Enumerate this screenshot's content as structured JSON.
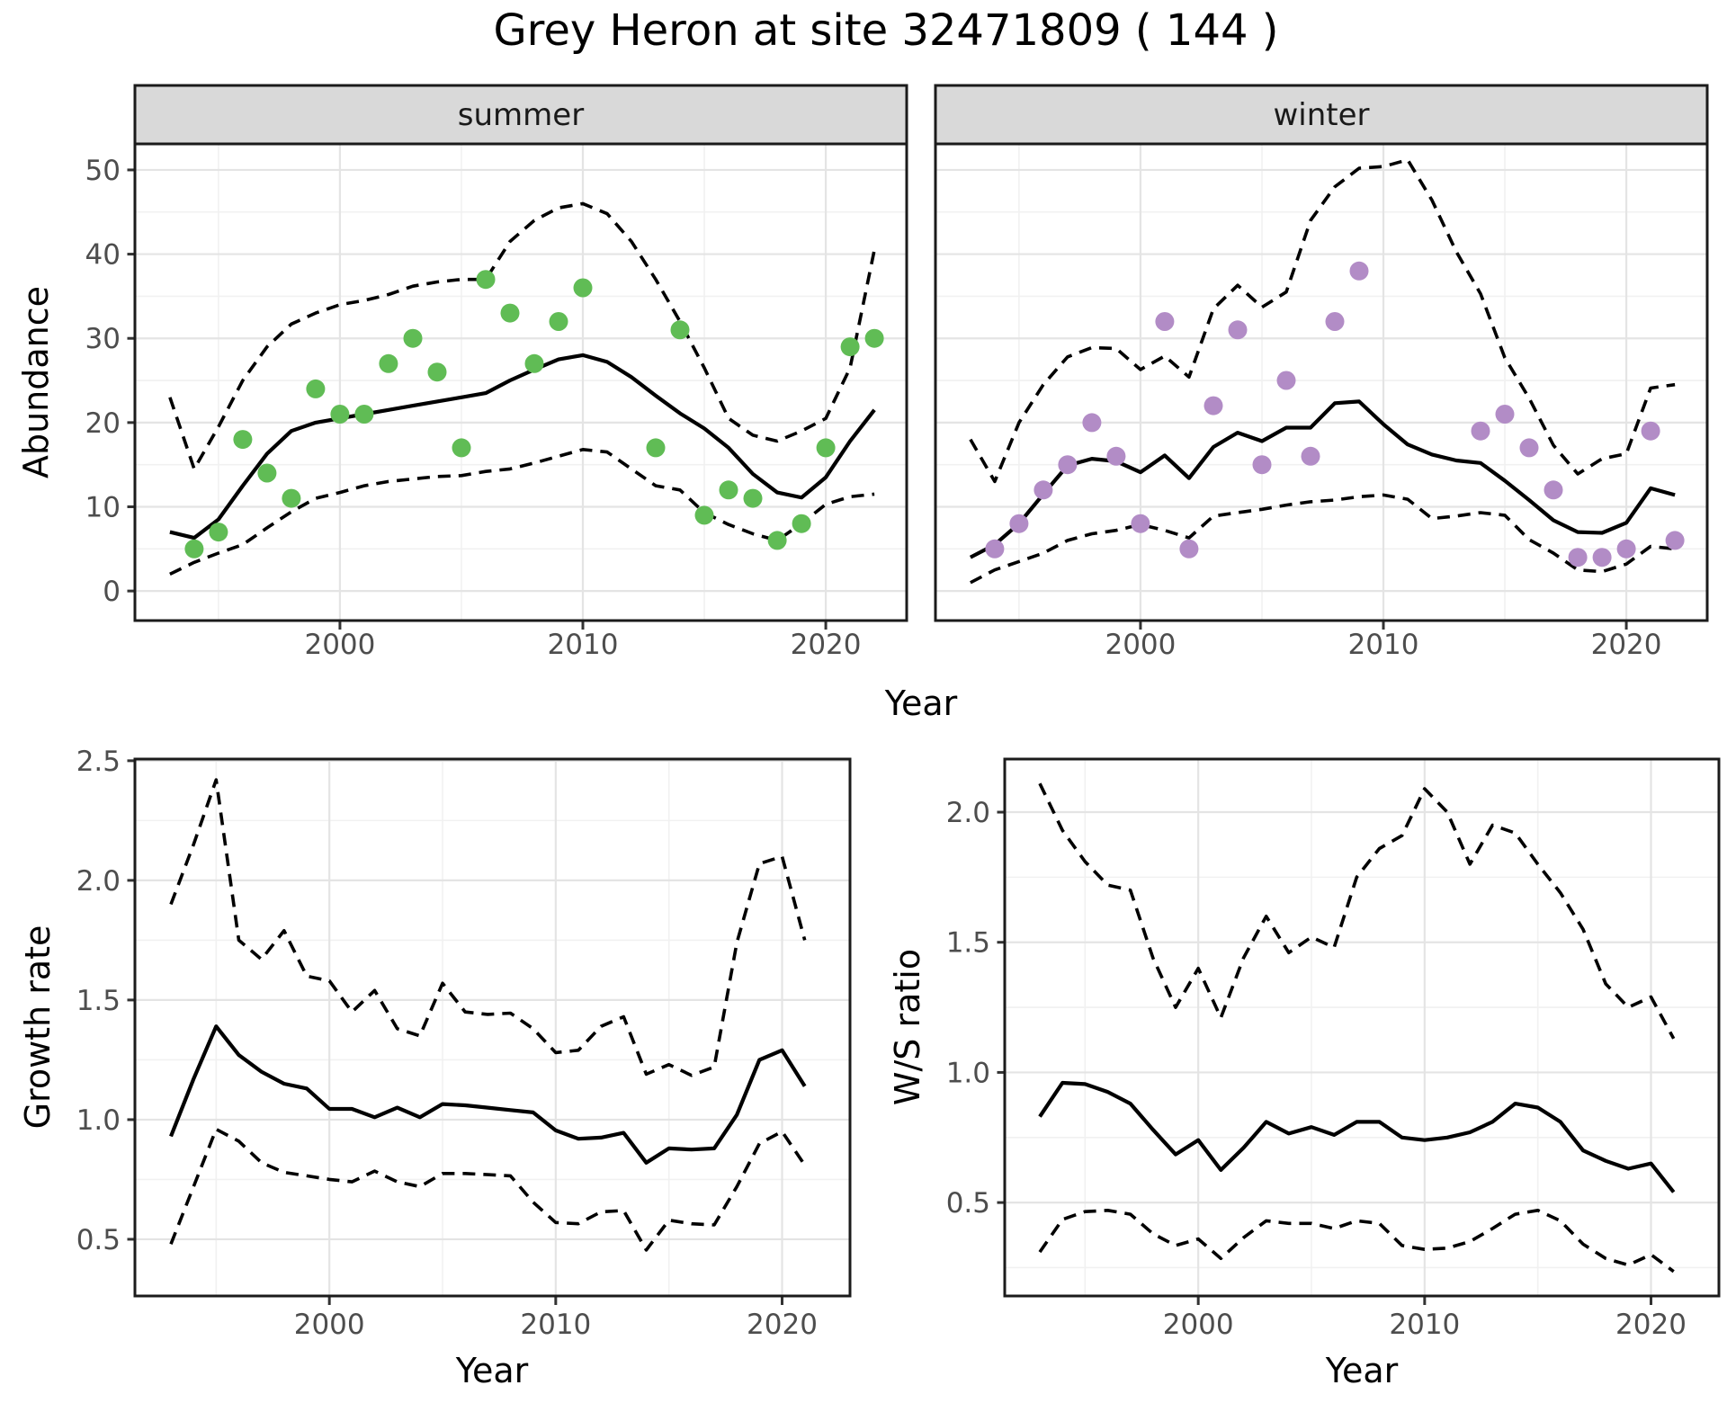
{
  "title": "Grey Heron at site 32471809 ( 144 )",
  "labels": {
    "y_abundance": "Abundance",
    "x_year_top": "Year",
    "y_growth": "Growth rate",
    "x_year_growth": "Year",
    "y_ws": "W/S ratio",
    "x_year_ws": "Year",
    "facet_summer": "summer",
    "facet_winter": "winter"
  },
  "colors": {
    "summer_points": "#60BC55",
    "winter_points": "#B28CC6",
    "line": "#000000",
    "strip_fill": "#D9D9D9",
    "grid_major": "#E4E4E4",
    "grid_minor": "#F1F1F1",
    "tick_text": "#4D4D4D",
    "panel_border": "#1B1B1B"
  },
  "chart_data": [
    {
      "type": "line",
      "facet": "summer",
      "xlabel": "Year",
      "ylabel": "Abundance",
      "xlim": [
        1991.56,
        2023.33
      ],
      "ylim": [
        -3.51,
        53.09
      ],
      "xticks": {
        "values": [
          2000,
          2010,
          2020
        ],
        "labels": [
          "2000",
          "2010",
          "2020"
        ],
        "minor": [
          1995,
          2005,
          2015
        ]
      },
      "yticks": {
        "values": [
          0,
          10,
          20,
          30,
          40,
          50
        ],
        "labels": [
          "0",
          "10",
          "20",
          "30",
          "40",
          "50"
        ],
        "minor": [
          5,
          15,
          25,
          35,
          45
        ]
      },
      "x_years": [
        1993,
        1994,
        1995,
        1996,
        1997,
        1998,
        1999,
        2000,
        2001,
        2002,
        2003,
        2004,
        2005,
        2006,
        2007,
        2008,
        2009,
        2010,
        2011,
        2012,
        2013,
        2014,
        2015,
        2016,
        2017,
        2018,
        2019,
        2020,
        2021,
        2022
      ],
      "series": [
        {
          "name": "estimate",
          "style": "solid",
          "values": [
            7,
            6.3,
            8.5,
            12.5,
            16.3,
            19,
            20,
            20.5,
            21,
            21.5,
            22,
            22.5,
            23,
            23.5,
            25,
            26.3,
            27.5,
            28,
            27.2,
            25.4,
            23.2,
            21.1,
            19.3,
            17,
            13.9,
            11.7,
            11.1,
            13.5,
            17.8,
            21.5
          ]
        },
        {
          "name": "upper_ci",
          "style": "dashed",
          "values": [
            23,
            14.5,
            19.5,
            25,
            29,
            31.7,
            33,
            34,
            34.5,
            35.2,
            36.2,
            36.7,
            37,
            37,
            41.5,
            44,
            45.5,
            46,
            44.8,
            41.5,
            37,
            32,
            26.5,
            20.5,
            18.5,
            17.8,
            19,
            20.5,
            26.5,
            40.5
          ]
        },
        {
          "name": "lower_ci",
          "style": "dashed",
          "values": [
            2,
            3.4,
            4.5,
            5.5,
            7.5,
            9.4,
            11,
            11.7,
            12.5,
            13,
            13.3,
            13.6,
            13.7,
            14.2,
            14.5,
            15.2,
            16,
            16.8,
            16.5,
            14.5,
            12.5,
            12,
            9.3,
            7.9,
            6.8,
            6,
            8,
            10.3,
            11.2,
            11.5
          ]
        }
      ],
      "points": {
        "x": [
          1994,
          1995,
          1996,
          1997,
          1998,
          1999,
          2000,
          2001,
          2002,
          2003,
          2004,
          2005,
          2006,
          2007,
          2008,
          2009,
          2010,
          2013,
          2014,
          2015,
          2016,
          2017,
          2018,
          2019,
          2020,
          2021,
          2022
        ],
        "y": [
          5,
          7,
          18,
          14,
          11,
          24,
          21,
          21,
          27,
          30,
          26,
          17,
          37,
          33,
          27,
          32,
          36,
          17,
          31,
          9,
          12,
          11,
          6,
          8,
          17,
          29,
          30
        ]
      }
    },
    {
      "type": "line",
      "facet": "winter",
      "xlabel": "Year",
      "ylabel": "Abundance",
      "xlim": [
        1991.56,
        2023.33
      ],
      "ylim": [
        -3.51,
        53.09
      ],
      "xticks": {
        "values": [
          2000,
          2010,
          2020
        ],
        "labels": [
          "2000",
          "2010",
          "2020"
        ],
        "minor": [
          1995,
          2005,
          2015
        ]
      },
      "yticks": {
        "values": [
          0,
          10,
          20,
          30,
          40,
          50
        ],
        "labels": [
          "0",
          "10",
          "20",
          "30",
          "40",
          "50"
        ],
        "minor": [
          5,
          15,
          25,
          35,
          45
        ]
      },
      "x_years": [
        1993,
        1994,
        1995,
        1996,
        1997,
        1998,
        1999,
        2000,
        2001,
        2002,
        2003,
        2004,
        2005,
        2006,
        2007,
        2008,
        2009,
        2010,
        2011,
        2012,
        2013,
        2014,
        2015,
        2016,
        2017,
        2018,
        2019,
        2020,
        2021,
        2022
      ],
      "series": [
        {
          "name": "estimate",
          "style": "solid",
          "values": [
            4,
            5.5,
            8,
            11.5,
            14.9,
            15.7,
            15.4,
            14.1,
            16.1,
            13.4,
            17.1,
            18.8,
            17.8,
            19.4,
            19.4,
            22.3,
            22.5,
            19.8,
            17.4,
            16.2,
            15.5,
            15.2,
            13.1,
            10.8,
            8.4,
            7,
            6.9,
            8.1,
            12.2,
            11.4
          ]
        },
        {
          "name": "upper_ci",
          "style": "dashed",
          "values": [
            18,
            13,
            20,
            24.5,
            27.8,
            28.9,
            28.8,
            26.3,
            27.9,
            25.4,
            33.5,
            36.3,
            33.7,
            35.5,
            44,
            48,
            50.2,
            50.4,
            51.2,
            46.4,
            40.3,
            35.3,
            27.7,
            22.9,
            17.3,
            13.9,
            15.7,
            16.3,
            24.1,
            24.5
          ]
        },
        {
          "name": "lower_ci",
          "style": "dashed",
          "values": [
            1,
            2.5,
            3.5,
            4.5,
            6,
            6.8,
            7.2,
            7.9,
            7.2,
            6.3,
            8.9,
            9.3,
            9.7,
            10.2,
            10.6,
            10.8,
            11.2,
            11.4,
            10.9,
            8.6,
            8.9,
            9.3,
            9,
            6.1,
            4.5,
            2.5,
            2.3,
            3.2,
            5.3,
            5
          ]
        }
      ],
      "points": {
        "x": [
          1994,
          1995,
          1996,
          1997,
          1998,
          1999,
          2000,
          2001,
          2002,
          2003,
          2004,
          2005,
          2006,
          2007,
          2008,
          2009,
          2014,
          2015,
          2016,
          2017,
          2018,
          2019,
          2020,
          2021,
          2022
        ],
        "y": [
          5,
          8,
          12,
          15,
          20,
          16,
          8,
          32,
          5,
          22,
          31,
          15,
          25,
          16,
          32,
          38,
          19,
          21,
          17,
          12,
          4,
          4,
          5,
          19,
          6
        ]
      }
    },
    {
      "type": "line",
      "facet": null,
      "xlabel": "Year",
      "ylabel": "Growth rate",
      "xlim": [
        1991.41,
        2023.0
      ],
      "ylim": [
        0.263,
        2.507
      ],
      "xticks": {
        "values": [
          2000,
          2010,
          2020
        ],
        "labels": [
          "2000",
          "2010",
          "2020"
        ],
        "minor": [
          1995,
          2005,
          2015
        ]
      },
      "yticks": {
        "values": [
          0.5,
          1.0,
          1.5,
          2.0,
          2.5
        ],
        "labels": [
          "0.5",
          "1.0",
          "1.5",
          "2.0",
          "2.5"
        ],
        "minor": [
          0.75,
          1.25,
          1.75,
          2.25
        ]
      },
      "x_years": [
        1993,
        1994,
        1995,
        1996,
        1997,
        1998,
        1999,
        2000,
        2001,
        2002,
        2003,
        2004,
        2005,
        2006,
        2007,
        2008,
        2009,
        2010,
        2011,
        2012,
        2013,
        2014,
        2015,
        2016,
        2017,
        2018,
        2019,
        2020,
        2021
      ],
      "series": [
        {
          "name": "estimate",
          "style": "solid",
          "values": [
            0.93,
            1.17,
            1.39,
            1.27,
            1.2,
            1.15,
            1.13,
            1.045,
            1.045,
            1.01,
            1.05,
            1.01,
            1.065,
            1.06,
            1.05,
            1.04,
            1.03,
            0.955,
            0.92,
            0.925,
            0.945,
            0.82,
            0.88,
            0.875,
            0.88,
            1.02,
            1.25,
            1.29,
            1.14
          ]
        },
        {
          "name": "upper_ci",
          "style": "dashed",
          "values": [
            1.9,
            2.15,
            2.42,
            1.75,
            1.67,
            1.79,
            1.6,
            1.58,
            1.45,
            1.54,
            1.38,
            1.35,
            1.57,
            1.45,
            1.44,
            1.445,
            1.38,
            1.28,
            1.29,
            1.39,
            1.43,
            1.19,
            1.23,
            1.185,
            1.22,
            1.74,
            2.07,
            2.1,
            1.75
          ]
        },
        {
          "name": "lower_ci",
          "style": "dashed",
          "values": [
            0.48,
            0.72,
            0.96,
            0.91,
            0.82,
            0.78,
            0.765,
            0.75,
            0.74,
            0.785,
            0.74,
            0.72,
            0.775,
            0.775,
            0.77,
            0.765,
            0.655,
            0.57,
            0.565,
            0.615,
            0.62,
            0.455,
            0.58,
            0.565,
            0.56,
            0.72,
            0.9,
            0.95,
            0.81
          ]
        }
      ],
      "points": null
    },
    {
      "type": "line",
      "facet": null,
      "xlabel": "Year",
      "ylabel": "W/S ratio",
      "xlim": [
        1991.45,
        2023.0
      ],
      "ylim": [
        0.141,
        2.204
      ],
      "xticks": {
        "values": [
          2000,
          2010,
          2020
        ],
        "labels": [
          "2000",
          "2010",
          "2020"
        ],
        "minor": [
          1995,
          2005,
          2015
        ]
      },
      "yticks": {
        "values": [
          0.5,
          1.0,
          1.5,
          2.0
        ],
        "labels": [
          "0.5",
          "1.0",
          "1.5",
          "2.0"
        ],
        "minor": [
          0.25,
          0.75,
          1.25,
          1.75
        ]
      },
      "x_years": [
        1993,
        1994,
        1995,
        1996,
        1997,
        1998,
        1999,
        2000,
        2001,
        2002,
        2003,
        2004,
        2005,
        2006,
        2007,
        2008,
        2009,
        2010,
        2011,
        2012,
        2013,
        2014,
        2015,
        2016,
        2017,
        2018,
        2019,
        2020,
        2021
      ],
      "series": [
        {
          "name": "estimate",
          "style": "solid",
          "values": [
            0.83,
            0.96,
            0.955,
            0.925,
            0.88,
            0.78,
            0.685,
            0.74,
            0.625,
            0.71,
            0.81,
            0.765,
            0.79,
            0.76,
            0.81,
            0.81,
            0.75,
            0.74,
            0.75,
            0.77,
            0.81,
            0.88,
            0.865,
            0.81,
            0.7,
            0.66,
            0.63,
            0.65,
            0.54
          ]
        },
        {
          "name": "upper_ci",
          "style": "dashed",
          "values": [
            2.11,
            1.93,
            1.81,
            1.72,
            1.7,
            1.44,
            1.25,
            1.4,
            1.21,
            1.44,
            1.6,
            1.46,
            1.52,
            1.48,
            1.75,
            1.86,
            1.91,
            2.09,
            2.0,
            1.8,
            1.95,
            1.92,
            1.8,
            1.69,
            1.55,
            1.34,
            1.25,
            1.29,
            1.13
          ]
        },
        {
          "name": "lower_ci",
          "style": "dashed",
          "values": [
            0.31,
            0.435,
            0.465,
            0.47,
            0.455,
            0.38,
            0.335,
            0.36,
            0.285,
            0.365,
            0.43,
            0.42,
            0.42,
            0.4,
            0.43,
            0.42,
            0.335,
            0.32,
            0.325,
            0.35,
            0.4,
            0.455,
            0.47,
            0.43,
            0.34,
            0.285,
            0.26,
            0.3,
            0.235
          ]
        }
      ],
      "points": null
    }
  ]
}
